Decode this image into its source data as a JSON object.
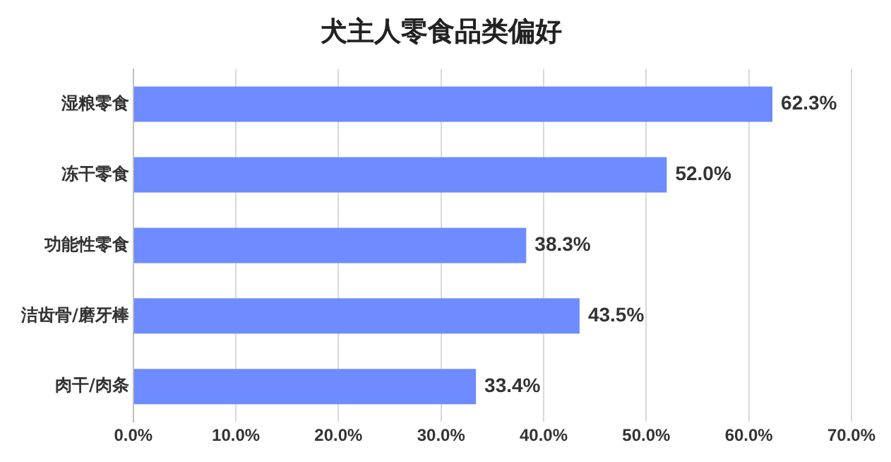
{
  "chart_data": {
    "type": "bar",
    "orientation": "horizontal",
    "title": "犬主人零食品类偏好",
    "categories": [
      "湿粮零食",
      "冻干零食",
      "功能性零食",
      "洁齿骨/磨牙棒",
      "肉干/肉条"
    ],
    "values": [
      62.3,
      52.0,
      38.3,
      43.5,
      33.4
    ],
    "value_labels": [
      "62.3%",
      "52.0%",
      "38.3%",
      "43.5%",
      "33.4%"
    ],
    "color": "#6e8bff",
    "xlim": [
      0,
      70
    ],
    "xticks": [
      {
        "value": 0,
        "label": "0.0%"
      },
      {
        "value": 10,
        "label": "10.0%"
      },
      {
        "value": 20,
        "label": "20.0%"
      },
      {
        "value": 30,
        "label": "30.0%"
      },
      {
        "value": 40,
        "label": "40.0%"
      },
      {
        "value": 50,
        "label": "50.0%"
      },
      {
        "value": 60,
        "label": "60.0%"
      },
      {
        "value": 70,
        "label": "70.0%"
      }
    ],
    "grid": "x",
    "legend": false
  }
}
